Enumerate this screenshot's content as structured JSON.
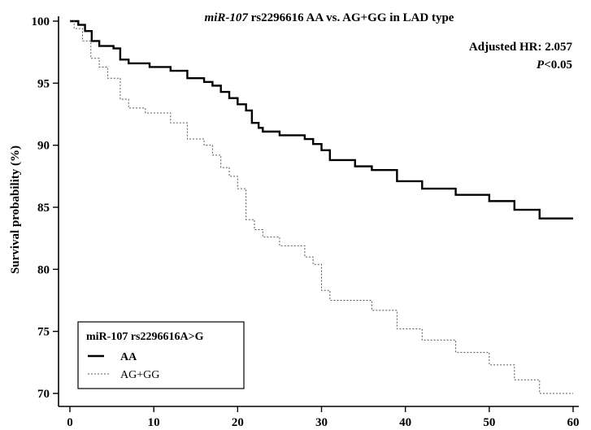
{
  "chart_data": {
    "type": "line",
    "step": true,
    "title_italic": "miR-107",
    "title_rest": " rs2296616 AA vs. AG+GG in LAD type",
    "xlabel": "",
    "ylabel": "Survival probability (%)",
    "xlim": [
      0,
      60
    ],
    "ylim": [
      70,
      100
    ],
    "xticks": [
      0,
      10,
      20,
      30,
      40,
      50,
      60
    ],
    "yticks": [
      70,
      75,
      80,
      85,
      90,
      95,
      100
    ],
    "grid": false,
    "annotations": {
      "hr": "Adjusted HR: 2.057",
      "p_italic": "P",
      "p_rest": "<0.05"
    },
    "legend": {
      "position": "bottom-left",
      "title": "miR-107 rs2296616A>G"
    },
    "series": [
      {
        "name": "AA",
        "style": "solid",
        "color": "#000000",
        "x": [
          0,
          1,
          1.8,
          2.6,
          3.5,
          5.2,
          6,
          7,
          9.5,
          12,
          14,
          16,
          17,
          18,
          19,
          20,
          21,
          21.7,
          22.5,
          23,
          25,
          28,
          29,
          30,
          31,
          34,
          36,
          39,
          42,
          46,
          50,
          53,
          56,
          60
        ],
        "y": [
          100,
          99.7,
          99.2,
          98.4,
          98.0,
          97.8,
          96.9,
          96.6,
          96.3,
          96.0,
          95.4,
          95.1,
          94.8,
          94.3,
          93.8,
          93.3,
          92.8,
          91.8,
          91.4,
          91.1,
          90.8,
          90.5,
          90.1,
          89.6,
          88.8,
          88.3,
          88.0,
          87.1,
          86.5,
          86.0,
          85.5,
          84.8,
          84.1,
          84.1
        ]
      },
      {
        "name": "AG+GG",
        "style": "dotted",
        "color": "#555555",
        "x": [
          0,
          0.5,
          1.5,
          2.5,
          3.5,
          4.5,
          6,
          7,
          9,
          12,
          14,
          16,
          17,
          18,
          19,
          20,
          21,
          22,
          23,
          25,
          28,
          29,
          30,
          31,
          36,
          39,
          42,
          46,
          50,
          53,
          56,
          60
        ],
        "y": [
          100,
          99.4,
          98.4,
          97.0,
          96.3,
          95.4,
          93.7,
          93.0,
          92.6,
          91.8,
          90.5,
          90.0,
          89.2,
          88.2,
          87.5,
          86.5,
          84.0,
          83.2,
          82.6,
          81.9,
          81.0,
          80.4,
          78.3,
          77.5,
          76.7,
          75.2,
          74.3,
          73.3,
          72.3,
          71.1,
          70.0,
          70.0
        ]
      }
    ]
  }
}
